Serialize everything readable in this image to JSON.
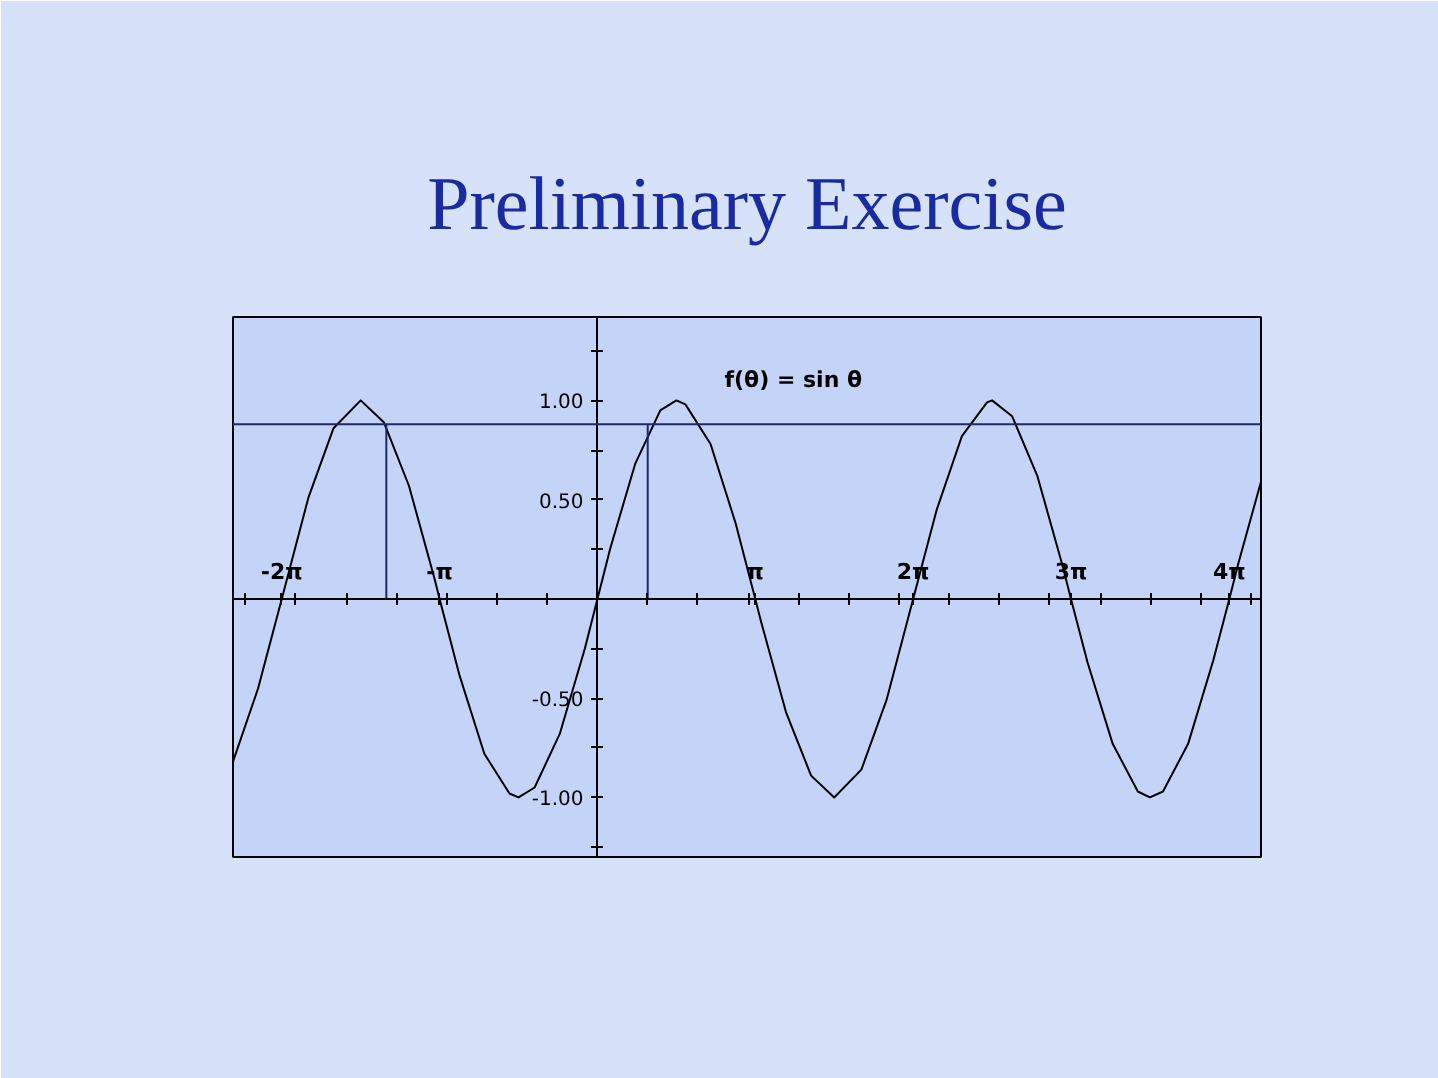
{
  "chart_data": {
    "type": "line",
    "title": "Preliminary Exercise",
    "annotations": [
      "f(θ) = sin θ"
    ],
    "xlim": [
      -7.25,
      13.2
    ],
    "ylim": [
      -1.3,
      1.42
    ],
    "xticks": [
      {
        "value": -7,
        "label": null
      },
      {
        "value": -6.28,
        "label": "-2π"
      },
      {
        "value": -6,
        "label": null
      },
      {
        "value": -5,
        "label": null
      },
      {
        "value": -4,
        "label": null
      },
      {
        "value": -3.14,
        "label": "-π"
      },
      {
        "value": -3,
        "label": null
      },
      {
        "value": -2,
        "label": null
      },
      {
        "value": -1,
        "label": null
      },
      {
        "value": 1,
        "label": null
      },
      {
        "value": 2,
        "label": null
      },
      {
        "value": 3,
        "label": null
      },
      {
        "value": 3.14,
        "label": "π"
      },
      {
        "value": 4,
        "label": null
      },
      {
        "value": 5,
        "label": null
      },
      {
        "value": 6,
        "label": null
      },
      {
        "value": 6.28,
        "label": "2π"
      },
      {
        "value": 7,
        "label": null
      },
      {
        "value": 8,
        "label": null
      },
      {
        "value": 9,
        "label": null
      },
      {
        "value": 9.42,
        "label": "3π"
      },
      {
        "value": 10,
        "label": null
      },
      {
        "value": 11,
        "label": null
      },
      {
        "value": 12,
        "label": null
      },
      {
        "value": 12.57,
        "label": "4π"
      },
      {
        "value": 13,
        "label": null
      }
    ],
    "yticks": [
      {
        "value": -1.25,
        "label": null
      },
      {
        "value": -1,
        "label": "-1.00"
      },
      {
        "value": -0.75,
        "label": null
      },
      {
        "value": -0.5,
        "label": "-0.50"
      },
      {
        "value": -0.25,
        "label": null
      },
      {
        "value": 0.25,
        "label": null
      },
      {
        "value": 0.5,
        "label": "0.50"
      },
      {
        "value": 0.75,
        "label": null
      },
      {
        "value": 1,
        "label": "1.00"
      },
      {
        "value": 1.25,
        "label": null
      }
    ],
    "ref_lines": [
      {
        "axis": "y",
        "value": 0.88,
        "color": "#1a2a6c"
      }
    ],
    "series": [
      {
        "color": "#000000",
        "x": [
          -7.25,
          -6.75,
          -6.28,
          -5.75,
          -5.25,
          -4.71,
          -4.25,
          -3.75,
          -3.25,
          -3.14,
          -2.75,
          -2.25,
          -1.75,
          -1.57,
          -1.25,
          -0.75,
          -0.25,
          0,
          0.25,
          0.75,
          1.25,
          1.57,
          1.75,
          2.25,
          2.75,
          3.14,
          3.25,
          3.75,
          4.25,
          4.71,
          5.25,
          5.75,
          6.28,
          6.75,
          7.25,
          7.75,
          7.85,
          8.25,
          8.75,
          9.25,
          9.42,
          9.75,
          10.25,
          10.75,
          10.99,
          11.25,
          11.75,
          12.25,
          12.57,
          12.75,
          13.2
        ],
        "values": [
          -0.82,
          -0.45,
          0,
          0.51,
          0.86,
          1,
          0.89,
          0.57,
          0.11,
          0,
          -0.38,
          -0.78,
          -0.98,
          -1,
          -0.95,
          -0.68,
          -0.25,
          0,
          0.25,
          0.68,
          0.95,
          1,
          0.98,
          0.78,
          0.38,
          0,
          -0.11,
          -0.57,
          -0.89,
          -1,
          -0.86,
          -0.51,
          0,
          0.45,
          0.82,
          0.99,
          1,
          0.92,
          0.62,
          0.17,
          0,
          -0.32,
          -0.73,
          -0.97,
          -1,
          -0.97,
          -0.73,
          -0.31,
          0,
          0.18,
          0.59
        ]
      },
      {
        "type": "line",
        "color": "#1a2a6c",
        "x": [
          1,
          1
        ],
        "values": [
          0,
          0.88
        ]
      },
      {
        "type": "line",
        "color": "#1a2a6c",
        "x": [
          -4.2,
          -4.2
        ],
        "values": [
          0,
          0.88
        ]
      }
    ]
  }
}
